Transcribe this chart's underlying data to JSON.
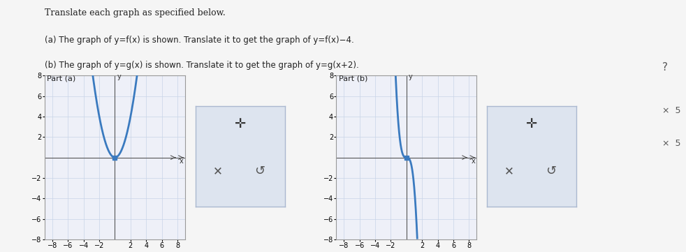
{
  "background_color": "#f0f0f0",
  "panel_bg": "#ffffff",
  "grid_color": "#c8d4e8",
  "axis_color": "#555555",
  "curve_color": "#3a7abf",
  "curve_lw": 2.0,
  "part_a_title": "Part (a)",
  "part_b_title": "Part (b)",
  "xlim": [
    -9,
    9
  ],
  "ylim": [
    -8,
    8
  ],
  "xticks": [
    -8,
    -6,
    -4,
    -2,
    2,
    4,
    6,
    8
  ],
  "yticks": [
    -8,
    -6,
    -4,
    -2,
    2,
    4,
    6,
    8
  ],
  "tick_fontsize": 7,
  "label_fontsize": 9,
  "header_text": "Translate each graph as specified below.",
  "line1": "(a) The graph of y⁠=⁠f⁠(x) is shown. Translate it to get the graph of y⁠=⁠f⁠(x)−4.",
  "line2": "(b) The graph of y⁠=⁠g⁠(x) is shown. Translate it to get the graph of y⁠=⁠g⁠(x+2).",
  "response_bg": "#dde4ef",
  "response_border": "#aab8d0"
}
